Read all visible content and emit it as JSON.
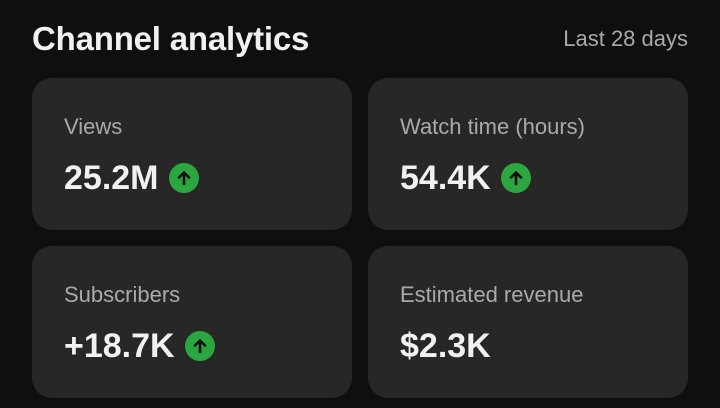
{
  "header": {
    "title": "Channel analytics",
    "range": "Last 28 days"
  },
  "cards": [
    {
      "label": "Views",
      "value": "25.2M",
      "trend": "up"
    },
    {
      "label": "Watch time (hours)",
      "value": "54.4K",
      "trend": "up"
    },
    {
      "label": "Subscribers",
      "value": "+18.7K",
      "trend": "up"
    },
    {
      "label": "Estimated revenue",
      "value": "$2.3K",
      "trend": "none"
    }
  ],
  "colors": {
    "background": "#0f0f0f",
    "card": "#272727",
    "trend_up": "#2ba640",
    "label": "#aaaaaa",
    "value": "#f1f1f1"
  },
  "icons": {
    "trend_up": "arrow-up-circle-icon"
  }
}
